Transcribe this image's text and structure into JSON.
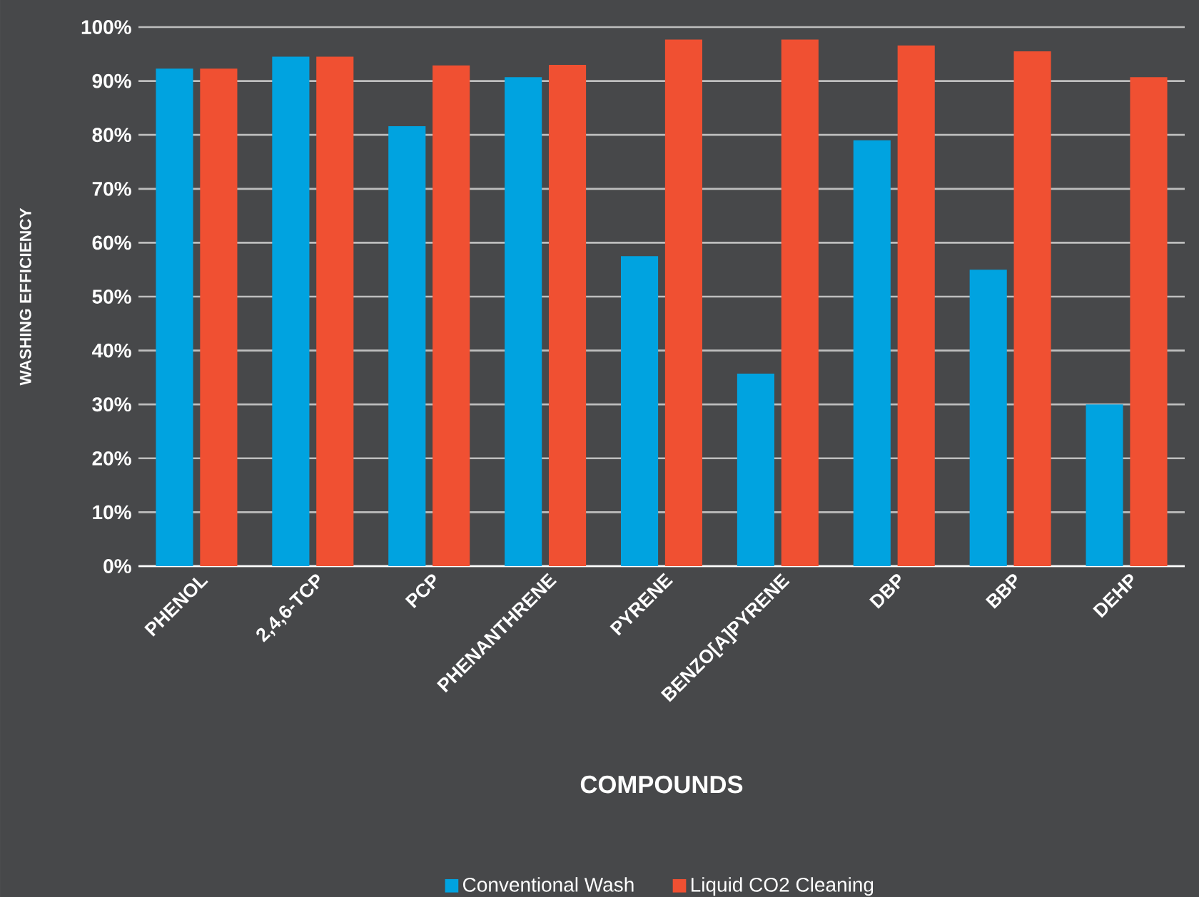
{
  "chart_data": {
    "type": "bar",
    "xlabel": "COMPOUNDS",
    "ylabel": "WASHING EFFICIENCY",
    "categories": [
      "PHENOL",
      "2,4,6-TCP",
      "PCP",
      "PHENANTHRENE",
      "PYRENE",
      "BENZO[A]PYRENE",
      "DBP",
      "BBP",
      "DEHP"
    ],
    "series": [
      {
        "name": "Conventional Wash",
        "color": "#00a3e0",
        "values": [
          92.3,
          94.5,
          81.6,
          90.7,
          57.5,
          35.7,
          79,
          55,
          30
        ]
      },
      {
        "name": "Liquid CO2 Cleaning",
        "color": "#f05032",
        "values": [
          92.3,
          94.5,
          92.9,
          93,
          97.7,
          97.7,
          96.6,
          95.5,
          90.7
        ]
      }
    ],
    "ylim": [
      0,
      100
    ],
    "yticks": [
      {
        "value": 0,
        "label": "0%"
      },
      {
        "value": 10,
        "label": "10%"
      },
      {
        "value": 20,
        "label": "20%"
      },
      {
        "value": 30,
        "label": "30%"
      },
      {
        "value": 40,
        "label": "40%"
      },
      {
        "value": 50,
        "label": "50%"
      },
      {
        "value": 60,
        "label": "60%"
      },
      {
        "value": 70,
        "label": "70%"
      },
      {
        "value": 80,
        "label": "80%"
      },
      {
        "value": 90,
        "label": "90%"
      },
      {
        "value": 100,
        "label": "100%"
      }
    ],
    "grid": "y",
    "legend": "bottom"
  }
}
